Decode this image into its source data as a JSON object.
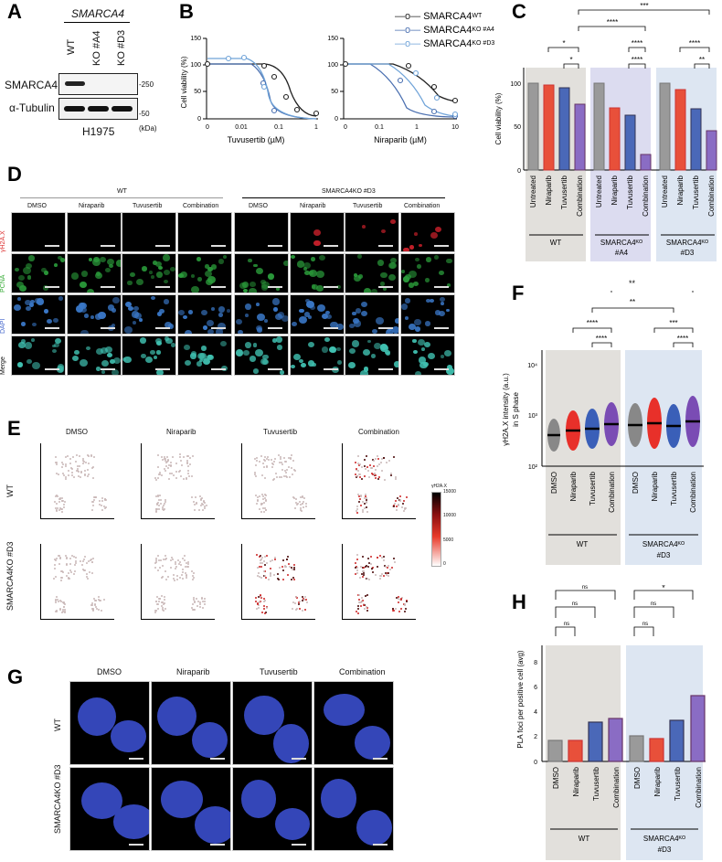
{
  "panels": {
    "A": "A",
    "B": "B",
    "C": "C",
    "D": "D",
    "E": "E",
    "F": "F",
    "G": "G",
    "H": "H"
  },
  "blot": {
    "gene": "SMARCA4",
    "lanes": [
      "WT",
      "KO #A4",
      "KO #D3"
    ],
    "rows": [
      "SMARCA4",
      "α-Tubulin"
    ],
    "markers": [
      "-250",
      "-50"
    ],
    "unit": "(kDa)",
    "cell_line": "H1975"
  },
  "D": {
    "groups": [
      "WT",
      "SMARCA4KO #D3"
    ],
    "cols": [
      "DMSO",
      "Niraparib",
      "Tuvusertib",
      "Combination"
    ],
    "rows": [
      "γH2A.X",
      "PCNA",
      "DAPI",
      "Merge"
    ]
  },
  "E": {
    "cols": [
      "DMSO",
      "Niraparib",
      "Tuvusertib",
      "Combination"
    ],
    "rows": [
      "WT",
      "SMARCA4KO #D3"
    ],
    "xlabel": "DAPI sum intensity (a.u.)",
    "ylabel": "PCNA mean intensity (a.u.)",
    "xticks": [
      "0",
      "5×10⁶",
      "1×10⁷"
    ],
    "ytick": "10³",
    "colorbar": {
      "title": "γH2A.X",
      "ticks": [
        "15000",
        "10000",
        "5000",
        "0"
      ]
    }
  },
  "G": {
    "cols": [
      "DMSO",
      "Niraparib",
      "Tuvusertib",
      "Combination"
    ],
    "rows": [
      "WT",
      "SMARCA4KO #D3"
    ]
  },
  "chart_data": [
    {
      "panel": "B-left",
      "type": "line",
      "title": "",
      "xlabel": "Tuvusertib (µM)",
      "ylabel": "Cell viability (%)",
      "ylim": [
        0,
        150
      ],
      "yticks": [
        0,
        50,
        100,
        150
      ],
      "xticks": [
        "0",
        "0.01",
        "0.1",
        "1"
      ],
      "x": [
        0,
        0.004,
        0.008,
        0.016,
        0.031,
        0.0625,
        0.125,
        0.25,
        0.5,
        1
      ],
      "series": [
        {
          "name": "SMARCA4WT",
          "values": [
            100,
            98,
            100,
            100,
            105,
            95,
            77,
            40,
            15,
            10
          ]
        },
        {
          "name": "SMARCA4KO #A4",
          "values": [
            100,
            100,
            100,
            100,
            95,
            65,
            15,
            2,
            1,
            1
          ]
        },
        {
          "name": "SMARCA4KO #D3",
          "values": [
            100,
            110,
            115,
            113,
            100,
            70,
            15,
            3,
            1,
            1
          ]
        }
      ]
    },
    {
      "panel": "B-right",
      "type": "line",
      "xlabel": "Niraparib (µM)",
      "ylabel": "Cell viability (%)",
      "ylim": [
        0,
        150
      ],
      "yticks": [
        0,
        50,
        100,
        150
      ],
      "xticks": [
        "0",
        "0.1",
        "1",
        "10"
      ],
      "x": [
        0,
        0.04,
        0.16,
        0.63,
        2.5,
        10
      ],
      "series": [
        {
          "name": "SMARCA4WT",
          "values": [
            100,
            102,
            103,
            98,
            57,
            33
          ]
        },
        {
          "name": "SMARCA4KO #A4",
          "values": [
            100,
            103,
            100,
            72,
            12,
            6
          ]
        },
        {
          "name": "SMARCA4KO #D3",
          "values": [
            100,
            104,
            102,
            88,
            38,
            10
          ]
        }
      ]
    },
    {
      "panel": "C",
      "type": "bar",
      "ylabel": "Cell viability (%)",
      "ylim": [
        0,
        120
      ],
      "yticks": [
        0,
        50,
        100
      ],
      "categories": [
        "Untreated",
        "Niraparib",
        "Tuvusertib",
        "Combination"
      ],
      "groups": [
        {
          "name": "WT",
          "values": [
            100,
            98,
            95,
            76
          ]
        },
        {
          "name": "SMARCA4KO #A4",
          "values": [
            100,
            72,
            63,
            18
          ]
        },
        {
          "name": "SMARCA4KO #D3",
          "values": [
            100,
            93,
            71,
            45
          ]
        }
      ],
      "significance": [
        "*",
        "*",
        "****",
        "****",
        "****",
        "****",
        "**",
        "***"
      ]
    },
    {
      "panel": "F",
      "type": "scatter",
      "ylabel": "γH2A.X intensity (a.u.) in S phase",
      "yscale": "log",
      "ylim": [
        100,
        20000
      ],
      "yticks": [
        "10²",
        "10³",
        "10⁴"
      ],
      "categories": [
        "DMSO",
        "Niraparib",
        "Tuvusertib",
        "Combination"
      ],
      "groups": [
        {
          "name": "WT",
          "medians": [
            380,
            490,
            530,
            630
          ]
        },
        {
          "name": "SMARCA4KO #D3",
          "medians": [
            610,
            660,
            580,
            720
          ]
        }
      ],
      "significance": [
        "****",
        "****",
        "****",
        "***",
        "**",
        "**"
      ]
    },
    {
      "panel": "H",
      "type": "bar",
      "ylabel": "PLA foci per positive cell (avg)",
      "ylim": [
        0,
        9
      ],
      "yticks": [
        0,
        2,
        4,
        6,
        8
      ],
      "categories": [
        "DMSO",
        "Niraparib",
        "Tuvusertib",
        "Combination"
      ],
      "groups": [
        {
          "name": "WT",
          "values": [
            1.7,
            1.7,
            3.2,
            3.5
          ]
        },
        {
          "name": "SMARCA4KO #D3",
          "values": [
            2.1,
            1.9,
            3.4,
            5.3
          ]
        }
      ],
      "significance": [
        "ns",
        "ns",
        "ns",
        "ns",
        "ns",
        "*"
      ]
    }
  ],
  "legendB": [
    {
      "label": "SMARCA4",
      "sup": "WT",
      "color": "#222222"
    },
    {
      "label": "SMARCA4",
      "sup": "KO #A4",
      "color": "#4a6fb0"
    },
    {
      "label": "SMARCA4",
      "sup": "KO #D3",
      "color": "#6fa3d8"
    }
  ],
  "colors": {
    "untreated": "#9a9a9a",
    "niraparib": "#e8503a",
    "tuvusertib": "#4a68b8",
    "combination": "#8a6cc4",
    "wt_bg": "#e2e0dc",
    "a4_bg": "#dcdcf0",
    "d3_bg": "#dde6f2"
  }
}
